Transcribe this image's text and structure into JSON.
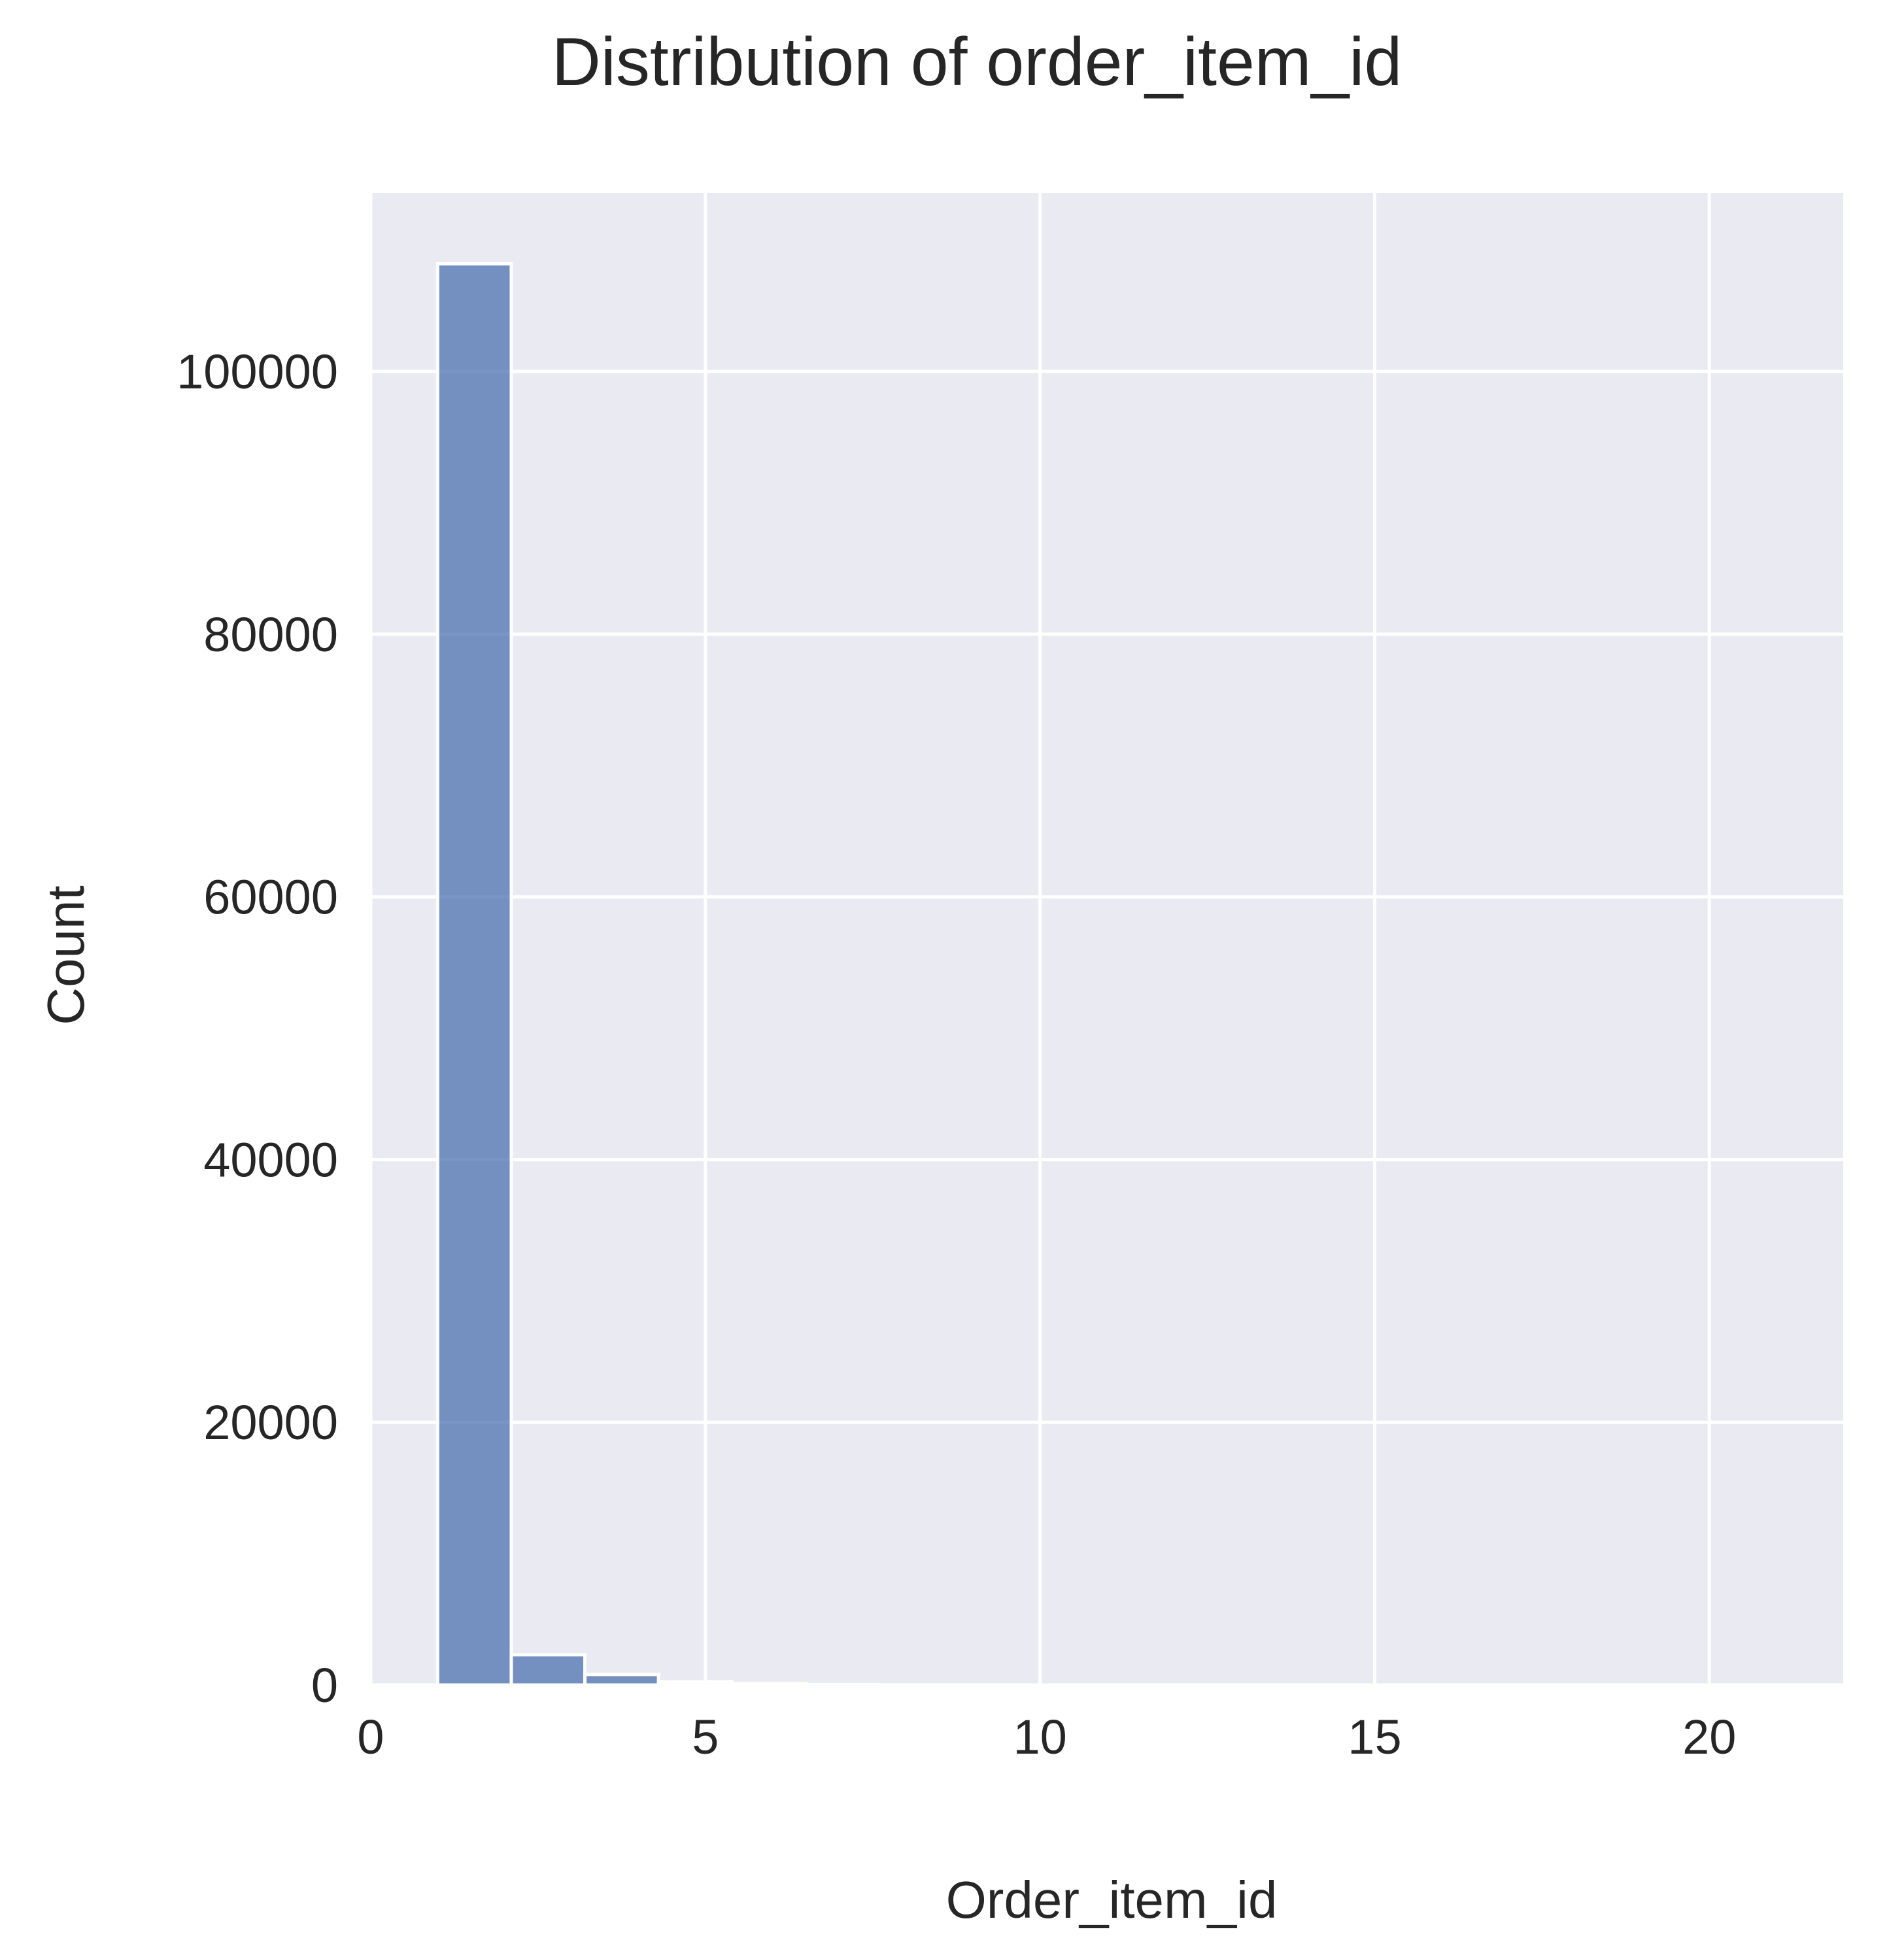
{
  "chart_data": {
    "type": "bar",
    "title": "Distribution of order_item_id",
    "xlabel": "Order_item_id",
    "ylabel": "Count",
    "xlim": [
      0,
      22
    ],
    "ylim": [
      0,
      113600
    ],
    "x_ticks": [
      0,
      5,
      10,
      15,
      20
    ],
    "y_ticks": [
      0,
      20000,
      40000,
      60000,
      80000,
      100000
    ],
    "grid": true,
    "legend": "none",
    "bins": [
      {
        "start": 1.0,
        "end": 2.1,
        "count": 108200
      },
      {
        "start": 2.1,
        "end": 3.2,
        "count": 2300
      },
      {
        "start": 3.2,
        "end": 4.3,
        "count": 800
      },
      {
        "start": 4.3,
        "end": 5.4,
        "count": 250
      },
      {
        "start": 5.4,
        "end": 6.5,
        "count": 100
      },
      {
        "start": 6.5,
        "end": 7.6,
        "count": 30
      },
      {
        "start": 7.6,
        "end": 8.7,
        "count": 8
      },
      {
        "start": 8.7,
        "end": 9.8,
        "count": 3
      },
      {
        "start": 9.8,
        "end": 10.9,
        "count": 2
      },
      {
        "start": 10.9,
        "end": 12.0,
        "count": 2
      },
      {
        "start": 12.0,
        "end": 13.1,
        "count": 1
      },
      {
        "start": 13.1,
        "end": 14.2,
        "count": 1
      },
      {
        "start": 14.2,
        "end": 15.3,
        "count": 1
      },
      {
        "start": 15.3,
        "end": 16.4,
        "count": 1
      },
      {
        "start": 16.4,
        "end": 17.5,
        "count": 1
      },
      {
        "start": 17.5,
        "end": 18.6,
        "count": 1
      },
      {
        "start": 18.6,
        "end": 19.7,
        "count": 1
      },
      {
        "start": 19.7,
        "end": 20.8,
        "count": 1
      }
    ],
    "colors": {
      "bar_fill": "#4c72b0",
      "bar_edge": "#ffffff",
      "plot_background": "#eaeaf2",
      "grid": "#ffffff",
      "text": "#262626"
    }
  }
}
